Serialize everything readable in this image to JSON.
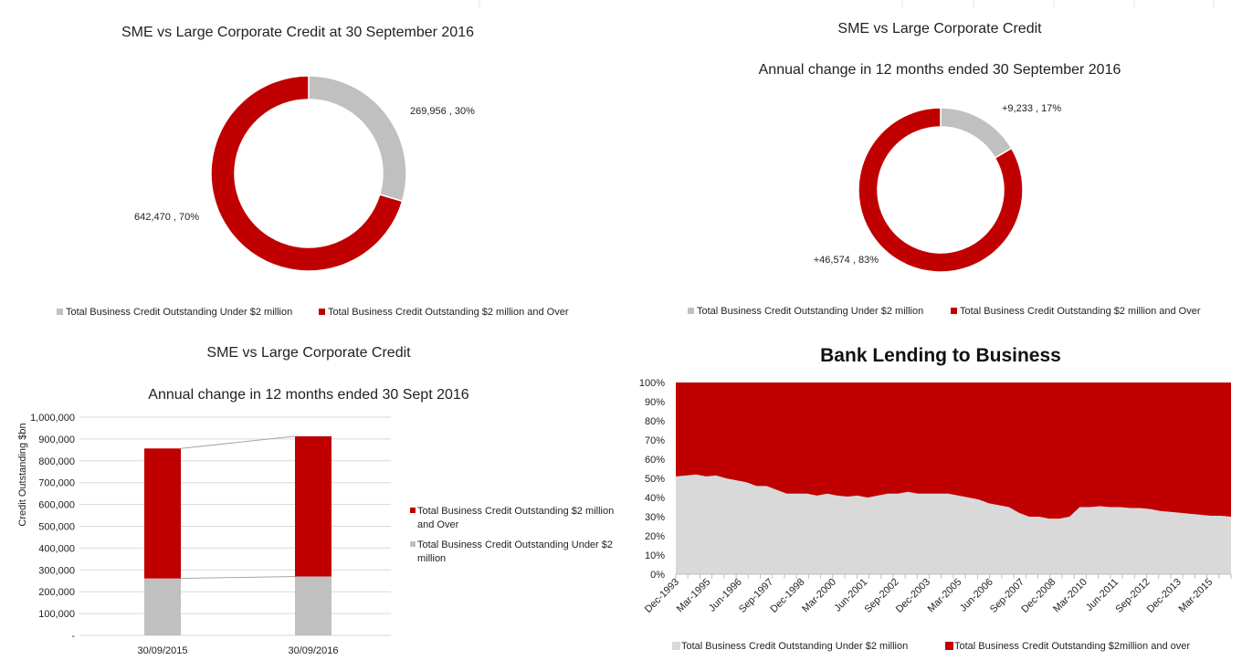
{
  "colors": {
    "small": "#c0c0c0",
    "large": "#c00000",
    "area_small": "#d9d9d9",
    "grid": "#d9d9d9",
    "connector": "#a6a6a6"
  },
  "chart_data": [
    {
      "type": "pie",
      "title": "SME vs Large Corporate Credit at 30 September 2016",
      "series": [
        {
          "name": "Total Business Credit Outstanding Under $2 million",
          "value": 269956,
          "label": "269,956 , 30%"
        },
        {
          "name": "Total Business Credit Outstanding $2 million and Over",
          "value": 642470,
          "label": "642,470 , 70%"
        }
      ],
      "legend": "bottom"
    },
    {
      "type": "pie",
      "title": "SME vs Large Corporate Credit",
      "subtitle": "Annual change in 12 months ended 30 September 2016",
      "series": [
        {
          "name": "Total Business Credit Outstanding Under $2 million",
          "value": 9233,
          "label": "+9,233 , 17%"
        },
        {
          "name": "Total Business Credit Outstanding $2 million and Over",
          "value": 46574,
          "label": "+46,574 , 83%"
        }
      ],
      "legend": "bottom"
    },
    {
      "type": "bar",
      "title": "SME vs Large Corporate Credit",
      "subtitle": "Annual change in 12 months ended 30 Sept 2016",
      "ylabel": "Credit Outstanding $bn",
      "categories": [
        "30/09/2015",
        "30/09/2016"
      ],
      "series": [
        {
          "name": "Total Business Credit Outstanding Under $2 million",
          "values": [
            260723,
            269956
          ]
        },
        {
          "name": "Total Business Credit Outstanding $2 million and Over",
          "values": [
            595896,
            642470
          ]
        }
      ],
      "ylim": [
        0,
        1000000
      ],
      "yticks": [
        "-",
        "100,000",
        "200,000",
        "300,000",
        "400,000",
        "500,000",
        "600,000",
        "700,000",
        "800,000",
        "900,000",
        "1,000,000"
      ],
      "grid": true,
      "legend": "right"
    },
    {
      "type": "area",
      "title": "Bank Lending to Business",
      "stacking": "percent",
      "ylim": [
        0,
        100
      ],
      "yticks": [
        "0%",
        "10%",
        "20%",
        "30%",
        "40%",
        "50%",
        "60%",
        "70%",
        "80%",
        "90%",
        "100%"
      ],
      "x_start": "Dec-1993",
      "x_end": "Sep-2016",
      "xtick_labels": [
        "Dec-1993",
        "Mar-1995",
        "Jun-1996",
        "Sep-1997",
        "Dec-1998",
        "Mar-2000",
        "Jun-2001",
        "Sep-2002",
        "Dec-2003",
        "Mar-2005",
        "Jun-2006",
        "Sep-2007",
        "Dec-2008",
        "Mar-2010",
        "Jun-2011",
        "Sep-2012",
        "Dec-2013",
        "Mar-2015"
      ],
      "series": [
        {
          "name": "Total Business Credit Outstanding Under $2 million",
          "values": [
            51,
            51.5,
            52,
            51,
            51.5,
            50,
            49,
            48,
            46,
            46,
            44,
            42,
            42,
            42,
            41,
            42,
            41,
            40.5,
            41,
            40,
            41,
            42,
            42,
            43,
            42,
            42,
            42,
            42,
            41,
            40,
            39,
            37,
            36,
            35,
            32,
            30,
            30,
            29,
            29,
            30,
            35,
            35,
            35.5,
            35,
            35,
            34.5,
            34.5,
            34,
            33,
            32.5,
            32,
            31.5,
            31,
            30.5,
            30.5,
            30
          ]
        },
        {
          "name": "Total Business Credit Outstanding $2million and over",
          "values": "remainder to 100%"
        }
      ],
      "legend": "bottom"
    }
  ]
}
